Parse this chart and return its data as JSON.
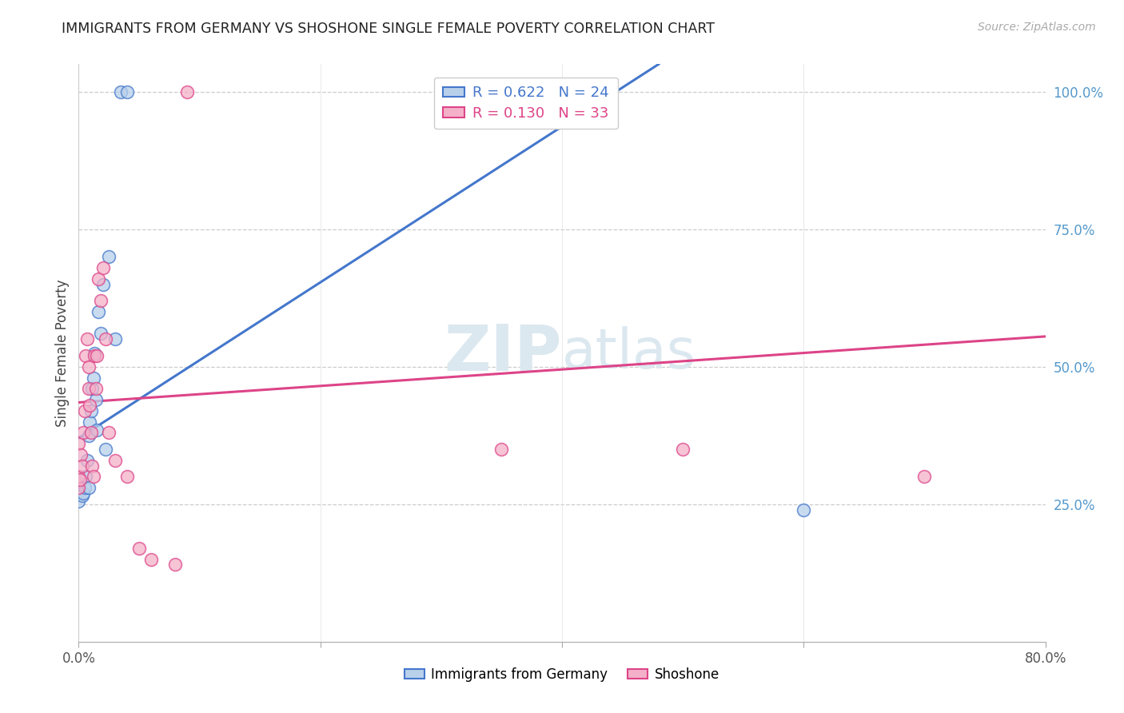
{
  "title": "IMMIGRANTS FROM GERMANY VS SHOSHONE SINGLE FEMALE POVERTY CORRELATION CHART",
  "source": "Source: ZipAtlas.com",
  "ylabel": "Single Female Poverty",
  "right_yticks": [
    "100.0%",
    "75.0%",
    "50.0%",
    "25.0%"
  ],
  "right_ytick_vals": [
    1.0,
    0.75,
    0.5,
    0.25
  ],
  "legend_blue_r": "R = 0.622",
  "legend_blue_n": "N = 24",
  "legend_pink_r": "R = 0.130",
  "legend_pink_n": "N = 33",
  "blue_fill": "#b8d0ea",
  "blue_edge": "#4477cc",
  "pink_fill": "#f4b0c8",
  "pink_edge": "#dd4488",
  "watermark_color": "#dce8f0",
  "xlim": [
    0.0,
    0.8
  ],
  "ylim": [
    0.0,
    1.05
  ],
  "blue_line_x0": 0.0,
  "blue_line_y0": 0.37,
  "blue_line_x1": 0.48,
  "blue_line_y1": 1.05,
  "pink_line_x0": 0.0,
  "pink_line_y0": 0.435,
  "pink_line_x1": 0.8,
  "pink_line_y1": 0.555,
  "blue_x": [
    0.0,
    0.003,
    0.004,
    0.005,
    0.006,
    0.007,
    0.008,
    0.008,
    0.009,
    0.01,
    0.011,
    0.012,
    0.013,
    0.014,
    0.015,
    0.016,
    0.018,
    0.02,
    0.022,
    0.025,
    0.03,
    0.035,
    0.04,
    0.6
  ],
  "blue_y": [
    0.255,
    0.265,
    0.27,
    0.28,
    0.3,
    0.33,
    0.375,
    0.28,
    0.4,
    0.42,
    0.46,
    0.48,
    0.525,
    0.44,
    0.385,
    0.6,
    0.56,
    0.65,
    0.35,
    0.7,
    0.55,
    1.0,
    1.0,
    0.24
  ],
  "pink_x": [
    0.0,
    0.0,
    0.0,
    0.001,
    0.002,
    0.003,
    0.004,
    0.005,
    0.006,
    0.007,
    0.008,
    0.008,
    0.009,
    0.01,
    0.011,
    0.012,
    0.013,
    0.014,
    0.015,
    0.016,
    0.018,
    0.02,
    0.022,
    0.025,
    0.03,
    0.04,
    0.05,
    0.06,
    0.08,
    0.09,
    0.35,
    0.5,
    0.7
  ],
  "pink_y": [
    0.28,
    0.3,
    0.36,
    0.295,
    0.34,
    0.32,
    0.38,
    0.42,
    0.52,
    0.55,
    0.46,
    0.5,
    0.43,
    0.38,
    0.32,
    0.3,
    0.52,
    0.46,
    0.52,
    0.66,
    0.62,
    0.68,
    0.55,
    0.38,
    0.33,
    0.3,
    0.17,
    0.15,
    0.14,
    1.0,
    0.35,
    0.35,
    0.3
  ]
}
